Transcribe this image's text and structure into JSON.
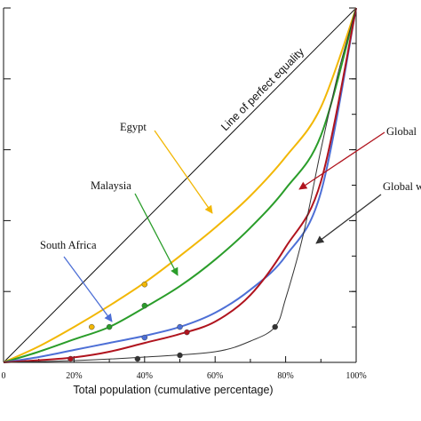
{
  "chart_data": {
    "type": "line",
    "title": "",
    "xlabel": "Total population (cumulative percentage)",
    "ylabel": "",
    "xlim": [
      0,
      100
    ],
    "ylim": [
      0,
      100
    ],
    "grid": false,
    "x_ticks": [
      "0",
      "20%",
      "40%",
      "60%",
      "80%",
      "100%"
    ],
    "equality_label": "Line of perfect equality",
    "series": [
      {
        "name": "Egypt",
        "color": "#f2b705",
        "x": [
          0,
          10,
          20,
          30,
          40,
          50,
          60,
          70,
          80,
          90,
          100
        ],
        "values": [
          0,
          4.5,
          10,
          16,
          22.5,
          30,
          38,
          47,
          58,
          72,
          100
        ],
        "marked_points": [
          [
            25,
            10
          ],
          [
            40,
            22
          ]
        ]
      },
      {
        "name": "Malaysia",
        "color": "#2a9d2a",
        "x": [
          0,
          10,
          20,
          30,
          40,
          50,
          60,
          70,
          80,
          90,
          100
        ],
        "values": [
          0,
          3,
          6.5,
          10,
          15.5,
          21.5,
          29,
          38,
          49,
          64,
          100
        ],
        "marked_points": [
          [
            30,
            10
          ],
          [
            40,
            16
          ]
        ]
      },
      {
        "name": "South Africa",
        "color": "#4d6fd6",
        "x": [
          0,
          10,
          20,
          30,
          40,
          50,
          60,
          70,
          80,
          90,
          100
        ],
        "values": [
          0,
          1.5,
          3.5,
          5.5,
          7.5,
          10,
          14,
          20.5,
          30,
          48,
          100
        ],
        "marked_points": [
          [
            40,
            7
          ],
          [
            50,
            10
          ]
        ]
      },
      {
        "name": "Global",
        "color": "#b0141e",
        "x": [
          0,
          10,
          20,
          30,
          40,
          50,
          60,
          70,
          80,
          90,
          100
        ],
        "values": [
          0,
          0.6,
          1.4,
          3,
          5.5,
          8,
          11.5,
          19,
          32.5,
          51,
          100
        ],
        "marked_points": [
          [
            19,
            1
          ],
          [
            52,
            8.5
          ]
        ]
      },
      {
        "name": "Global w",
        "color": "#333333",
        "x": [
          0,
          20,
          40,
          60,
          70,
          77,
          80,
          85,
          90,
          95,
          100
        ],
        "values": [
          0,
          0.5,
          1.5,
          3,
          6,
          10,
          18,
          36,
          60,
          82,
          100
        ],
        "marked_points": [
          [
            38,
            1
          ],
          [
            50,
            2
          ],
          [
            77,
            10
          ]
        ]
      }
    ],
    "annotations": [
      {
        "label": "Egypt",
        "series": "Egypt"
      },
      {
        "label": "Malaysia",
        "series": "Malaysia"
      },
      {
        "label": "South Africa",
        "series": "South Africa"
      },
      {
        "label": "Global",
        "series": "Global"
      },
      {
        "label": "Global w",
        "series": "Global w"
      }
    ]
  }
}
